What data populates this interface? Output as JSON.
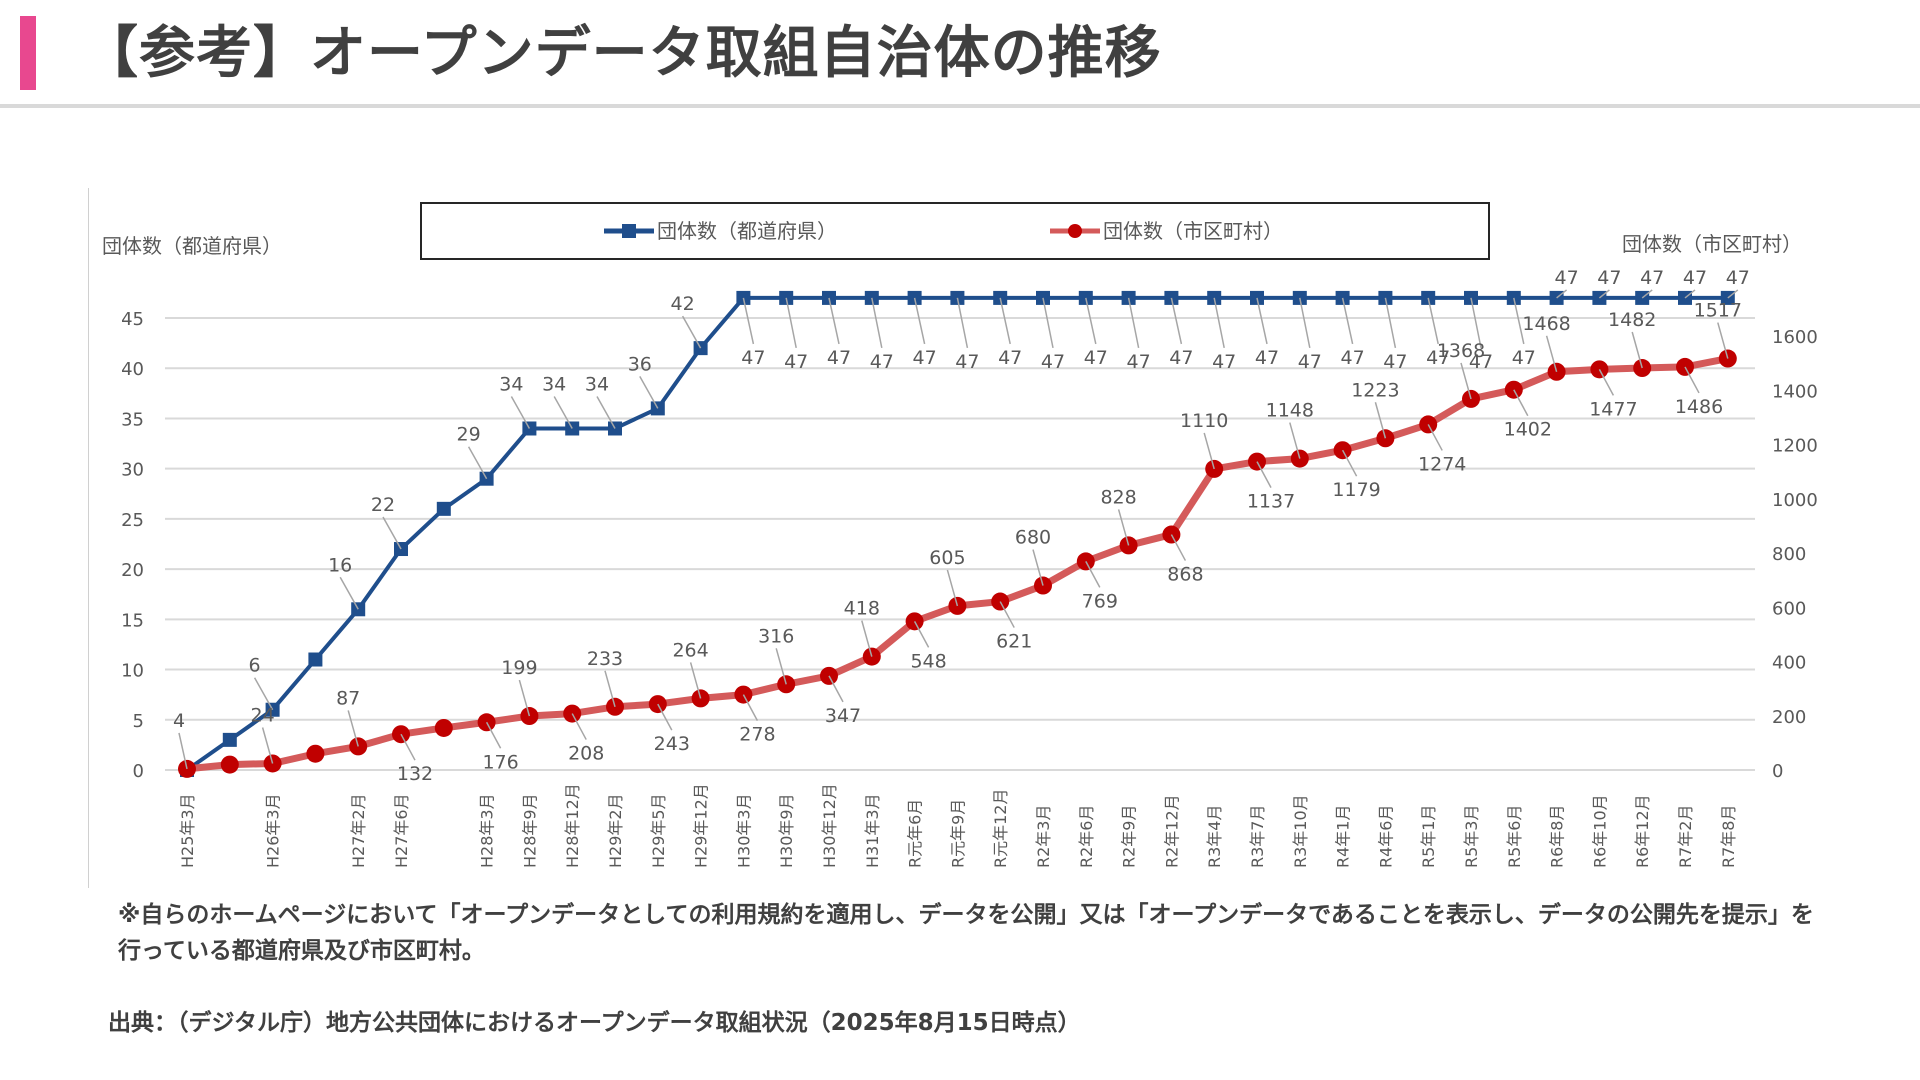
{
  "page": {
    "title": "【参考】オープンデータ取組自治体の推移",
    "note": "※自らのホームページにおいて「オープンデータとしての利用規約を適用し、データを公開」又は「オープンデータであることを表示し、データの公開先を提示」を行っている都道府県及び市区町村。",
    "source": "出典：（デジタル庁）地方公共団体におけるオープンデータ取組状況（2025年8月15日時点）",
    "accent_color": "#e8488f"
  },
  "chart_data": {
    "type": "line",
    "title": "",
    "ylabel_left": "団体数（都道府県）",
    "ylabel_right": "団体数（市区町村）",
    "ylim_left": [
      0,
      45
    ],
    "yticks_left": [
      0,
      5,
      10,
      15,
      20,
      25,
      30,
      35,
      40,
      45
    ],
    "ylim_right": [
      0,
      1600
    ],
    "yticks_right": [
      0,
      200,
      400,
      600,
      800,
      1000,
      1200,
      1400,
      1600
    ],
    "grid": true,
    "legend_position": "top-center",
    "categories": [
      "H25年3月",
      "",
      "H26年3月",
      "",
      "H27年2月",
      "H27年6月",
      "",
      "H28年3月",
      "H28年9月",
      "H28年12月",
      "H29年2月",
      "H29年5月",
      "H29年12月",
      "H30年3月",
      "H30年9月",
      "H30年12月",
      "H31年3月",
      "R元年6月",
      "R元年9月",
      "R元年12月",
      "R2年3月",
      "R2年6月",
      "R2年9月",
      "R2年12月",
      "R3年4月",
      "R3年7月",
      "R3年10月",
      "R4年1月",
      "R4年6月",
      "R5年1月",
      "R5年3月",
      "R5年6月",
      "R6年8月",
      "R6年10月",
      "R6年12月",
      "R7年2月",
      "R7年8月"
    ],
    "series": [
      {
        "name": "団体数（都道府県）",
        "axis": "left",
        "color": "#1f4e8c",
        "marker": "square",
        "values": [
          0,
          3,
          6,
          11,
          16,
          22,
          26,
          29,
          34,
          34,
          34,
          36,
          42,
          47,
          47,
          47,
          47,
          47,
          47,
          47,
          47,
          47,
          47,
          47,
          47,
          47,
          47,
          47,
          47,
          47,
          47,
          47,
          47,
          47,
          47,
          47,
          47
        ],
        "labels": [
          "",
          "",
          "6",
          "",
          "16",
          "22",
          "",
          "29",
          "34",
          "34",
          "34",
          "36",
          "42",
          "47",
          "47",
          "47",
          "47",
          "47",
          "47",
          "47",
          "47",
          "47",
          "47",
          "47",
          "47",
          "47",
          "47",
          "47",
          "47",
          "47",
          "47",
          "47",
          "47",
          "47",
          "47",
          "47",
          "47"
        ]
      },
      {
        "name": "団体数（市区町村）",
        "axis": "right",
        "color": "#c00000",
        "marker": "circle",
        "values": [
          4,
          20,
          24,
          60,
          87,
          132,
          155,
          176,
          199,
          208,
          233,
          243,
          264,
          278,
          316,
          347,
          418,
          548,
          605,
          621,
          680,
          769,
          828,
          868,
          1110,
          1137,
          1148,
          1179,
          1223,
          1274,
          1368,
          1402,
          1468,
          1477,
          1482,
          1486,
          1517
        ],
        "labels": [
          "4",
          "",
          "24",
          "",
          "87",
          "132",
          "",
          "176",
          "199",
          "208",
          "233",
          "243",
          "264",
          "278",
          "316",
          "347",
          "418",
          "548",
          "605",
          "621",
          "680",
          "769",
          "828",
          "868",
          "1110",
          "1137",
          "1148",
          "1179",
          "1223",
          "1274",
          "1368",
          "1402",
          "1468",
          "1477",
          "1482",
          "1486",
          "1517"
        ]
      }
    ]
  }
}
